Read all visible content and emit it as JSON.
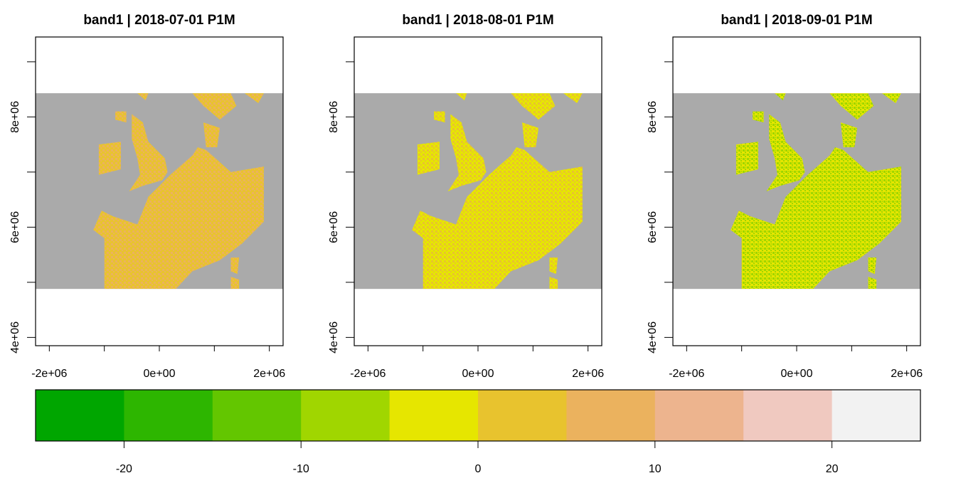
{
  "chart_data": {
    "type": "heatmap",
    "panels": [
      {
        "title": "band1 | 2018-07-01 P1M",
        "map_style": "warm"
      },
      {
        "title": "band1 | 2018-08-01 P1M",
        "map_style": "mixed"
      },
      {
        "title": "band1 | 2018-09-01 P1M",
        "map_style": "cool"
      }
    ],
    "x_axis": {
      "ticks": [
        -2000000,
        -1000000,
        0,
        1000000,
        2000000
      ],
      "labels": [
        "-2e+06",
        "0e+00",
        "2e+06"
      ],
      "labeled_values": [
        -2000000,
        0,
        2000000
      ],
      "lim": [
        -2250000,
        2250000
      ]
    },
    "y_axis": {
      "ticks": [
        4000000,
        5000000,
        6000000,
        7000000,
        8000000,
        9000000
      ],
      "labels": [
        "4e+06",
        "6e+06",
        "8e+06"
      ],
      "labeled_values": [
        4000000,
        6000000,
        8000000
      ],
      "lim": [
        3850000,
        9450000
      ]
    },
    "raster_extent": {
      "x": [
        -2250000,
        2250000
      ],
      "y": [
        4880000,
        8430000
      ]
    },
    "na_color": "#aaaaaa",
    "legend": {
      "breaks": [
        -25,
        -20,
        -15,
        -10,
        -5,
        0,
        5,
        10,
        15,
        20,
        25
      ],
      "colors": [
        "#00a600",
        "#2db600",
        "#63c600",
        "#a0d600",
        "#e6e600",
        "#e8c32e",
        "#ebb25e",
        "#edb48e",
        "#f0c9c0",
        "#f2f2f2"
      ],
      "tick_values": [
        -20,
        -10,
        0,
        10,
        20
      ],
      "tick_labels": [
        "-20",
        "-10",
        "0",
        "10",
        "20"
      ]
    }
  }
}
